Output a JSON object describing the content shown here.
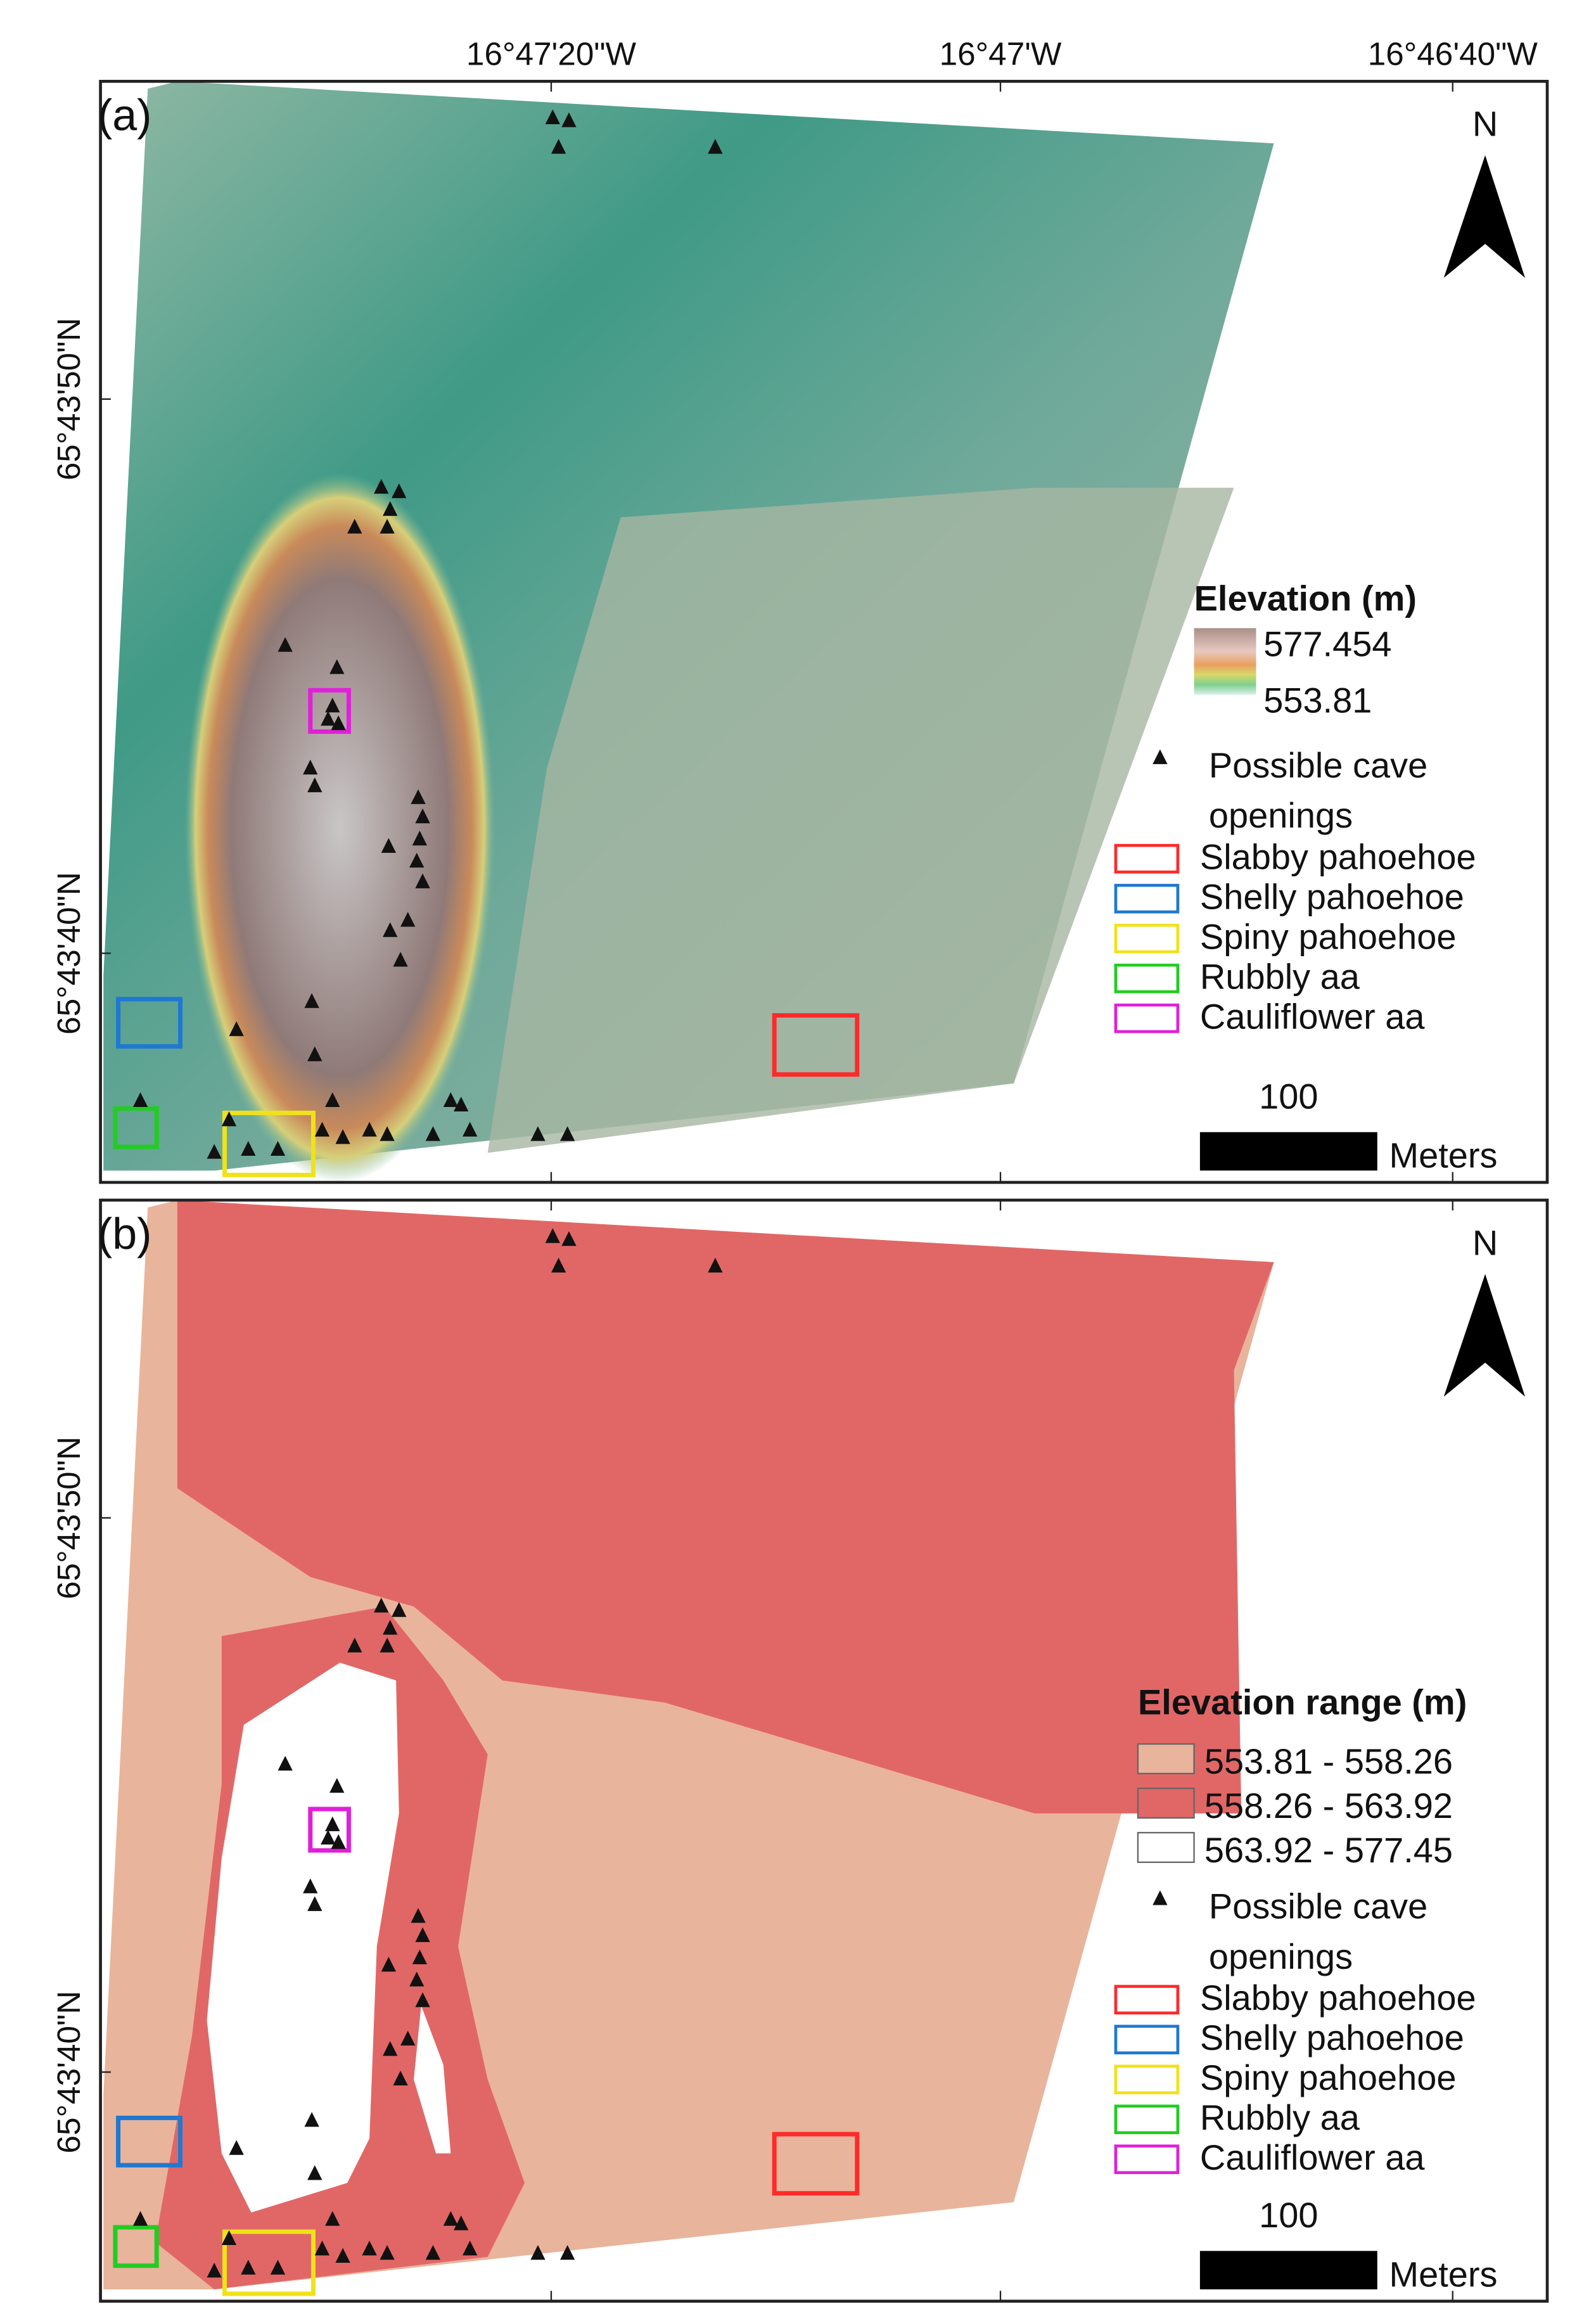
{
  "panels": [
    {
      "label": "(a)",
      "top_axis_labels": [
        "16°47'20\"W",
        "16°47'W",
        "16°46'40\"W"
      ],
      "left_axis_labels": [
        "65°43'50\"N",
        "65°43'40\"N"
      ],
      "north": "N",
      "legend": {
        "title": "Elevation (m)",
        "ramp_labels": [
          "577.454",
          "553.81"
        ],
        "cave_label": [
          "Possible cave",
          "openings"
        ],
        "boxes": [
          {
            "label": "Slabby pahoehoe",
            "color": "#ff2a2a"
          },
          {
            "label": "Shelly pahoehoe",
            "color": "#1f78d1"
          },
          {
            "label": "Spiny pahoehoe",
            "color": "#f0e21a"
          },
          {
            "label": "Rubbly aa",
            "color": "#22cc22"
          },
          {
            "label": "Cauliflower aa",
            "color": "#e020d8"
          }
        ]
      },
      "scale_value": "100",
      "scale_unit": "Meters"
    },
    {
      "label": "(b)",
      "north": "N",
      "left_axis_labels": [
        "65°43'50\"N",
        "65°43'40\"N"
      ],
      "legend": {
        "title": "Elevation range (m)",
        "classes": [
          {
            "label": "553.81 - 558.26",
            "color": "#e9b49c"
          },
          {
            "label": "558.26 - 563.92",
            "color": "#e16767"
          },
          {
            "label": "563.92 - 577.45",
            "color": "#ffffff"
          }
        ],
        "cave_label": [
          "Possible cave",
          "openings"
        ],
        "boxes": [
          {
            "label": "Slabby pahoehoe",
            "color": "#ff2a2a"
          },
          {
            "label": "Shelly pahoehoe",
            "color": "#1f78d1"
          },
          {
            "label": "Spiny pahoehoe",
            "color": "#f0e21a"
          },
          {
            "label": "Rubbly aa",
            "color": "#22cc22"
          },
          {
            "label": "Cauliflower aa",
            "color": "#e020d8"
          }
        ]
      },
      "scale_value": "100",
      "scale_unit": "Meters"
    }
  ]
}
